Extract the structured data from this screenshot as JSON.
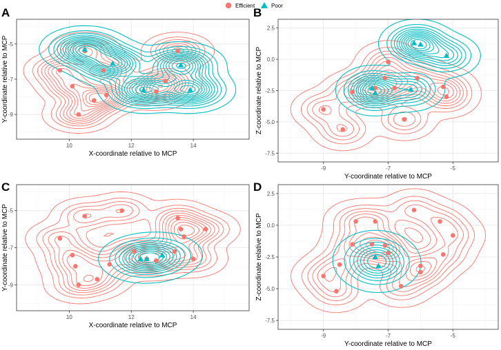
{
  "legend": {
    "items": [
      {
        "label": "Efficient",
        "color": "#F8766D",
        "shape": "circle"
      },
      {
        "label": "Poor",
        "color": "#00BFC4",
        "shape": "triangle"
      }
    ]
  },
  "chart_data": [
    {
      "panel": "A",
      "type": "scatter",
      "xlabel": "X-coordinate relative to MCP",
      "ylabel": "Y-coordinate relative to MCP",
      "xlim": [
        8.3,
        15.8
      ],
      "ylim": [
        -10.4,
        -3.6
      ],
      "xticks": [
        10,
        12,
        14
      ],
      "yticks": [
        -9,
        -7,
        -5
      ],
      "series": [
        {
          "name": "Efficient",
          "points": [
            [
              9.7,
              -6.5
            ],
            [
              10.1,
              -7.4
            ],
            [
              10.3,
              -9.0
            ],
            [
              10.5,
              -5.4
            ],
            [
              10.8,
              -8.2
            ],
            [
              11.1,
              -6.5
            ],
            [
              11.2,
              -7.9
            ],
            [
              12.8,
              -7.7
            ],
            [
              13.1,
              -7.1
            ],
            [
              13.5,
              -5.4
            ]
          ]
        },
        {
          "name": "Poor",
          "points": [
            [
              10.5,
              -5.3
            ],
            [
              11.4,
              -6.1
            ],
            [
              12.4,
              -7.6
            ],
            [
              13.6,
              -6.2
            ],
            [
              13.9,
              -7.6
            ]
          ]
        }
      ],
      "density_contours": {
        "Efficient": 12,
        "Poor": 12
      }
    },
    {
      "panel": "B",
      "type": "scatter",
      "xlabel": "Y-coordinate relative to MCP",
      "ylabel": "Z-coordinate relative to MCP",
      "xlim": [
        -10.4,
        -3.6
      ],
      "ylim": [
        -8.2,
        3.2
      ],
      "xticks": [
        -9,
        -7,
        -5
      ],
      "yticks": [
        2.5,
        0.0,
        -2.5,
        -5.0,
        -7.5
      ],
      "series": [
        {
          "name": "Efficient",
          "points": [
            [
              -9.0,
              -4.0
            ],
            [
              -8.4,
              -5.6
            ],
            [
              -8.1,
              -2.6
            ],
            [
              -7.4,
              -2.3
            ],
            [
              -7.1,
              -1.5
            ],
            [
              -7.0,
              -0.2
            ],
            [
              -6.8,
              -2.3
            ],
            [
              -6.5,
              -4.8
            ],
            [
              -6.1,
              -1.5
            ],
            [
              -5.3,
              -2.2
            ],
            [
              -5.2,
              -3.0
            ]
          ]
        },
        {
          "name": "Poor",
          "points": [
            [
              -7.5,
              -2.3
            ],
            [
              -7.4,
              -2.7
            ],
            [
              -6.3,
              -2.4
            ],
            [
              -6.2,
              1.3
            ],
            [
              -6.0,
              1.2
            ],
            [
              -5.2,
              0.3
            ]
          ]
        }
      ],
      "density_contours": {
        "Efficient": 10,
        "Poor": 11
      }
    },
    {
      "panel": "C",
      "type": "scatter",
      "xlabel": "X-coordinate relative to MCP",
      "ylabel": "Y-coordinate relative to MCP",
      "xlim": [
        8.3,
        15.8
      ],
      "ylim": [
        -10.4,
        -3.6
      ],
      "xticks": [
        10,
        12,
        14
      ],
      "yticks": [
        -9,
        -7,
        -5
      ],
      "series": [
        {
          "name": "Efficient",
          "points": [
            [
              9.7,
              -6.5
            ],
            [
              10.1,
              -7.4
            ],
            [
              10.2,
              -8.0
            ],
            [
              10.3,
              -9.0
            ],
            [
              10.5,
              -5.3
            ],
            [
              10.9,
              -8.7
            ],
            [
              11.3,
              -7.9
            ],
            [
              11.7,
              -5.0
            ],
            [
              12.1,
              -7.2
            ],
            [
              12.5,
              -7.6
            ],
            [
              12.8,
              -7.7
            ],
            [
              13.4,
              -7.2
            ],
            [
              13.5,
              -5.4
            ],
            [
              13.6,
              -6.0
            ],
            [
              13.7,
              -6.4
            ],
            [
              14.0,
              -7.6
            ],
            [
              14.4,
              -6.0
            ]
          ]
        },
        {
          "name": "Poor",
          "points": [
            [
              12.3,
              -7.6
            ],
            [
              12.5,
              -7.6
            ],
            [
              13.0,
              -7.4
            ]
          ]
        }
      ],
      "density_contours": {
        "Efficient": 10,
        "Poor": 10
      }
    },
    {
      "panel": "D",
      "type": "scatter",
      "xlabel": "Y-coordinate relative to MCP",
      "ylabel": "Z-coordinate relative to MCP",
      "xlim": [
        -10.4,
        -3.6
      ],
      "ylim": [
        -8.2,
        3.2
      ],
      "xticks": [
        -9,
        -7,
        -5
      ],
      "yticks": [
        2.5,
        0.0,
        -2.5,
        -5.0,
        -7.5
      ],
      "series": [
        {
          "name": "Efficient",
          "points": [
            [
              -9.0,
              -4.0
            ],
            [
              -8.6,
              -5.2
            ],
            [
              -8.5,
              -3.1
            ],
            [
              -8.1,
              -1.5
            ],
            [
              -8.0,
              0.3
            ],
            [
              -7.5,
              -1.5
            ],
            [
              -7.4,
              0.3
            ],
            [
              -7.1,
              -1.6
            ],
            [
              -7.0,
              -2.2
            ],
            [
              -6.6,
              -4.8
            ],
            [
              -6.2,
              1.2
            ],
            [
              -6.0,
              -3.2
            ],
            [
              -6.0,
              -3.7
            ],
            [
              -5.4,
              0.3
            ],
            [
              -5.3,
              -2.3
            ],
            [
              -5.0,
              -0.8
            ]
          ]
        },
        {
          "name": "Poor",
          "points": [
            [
              -7.4,
              -2.5
            ],
            [
              -7.3,
              -3.2
            ]
          ]
        }
      ],
      "density_contours": {
        "Efficient": 9,
        "Poor": 8
      }
    }
  ]
}
